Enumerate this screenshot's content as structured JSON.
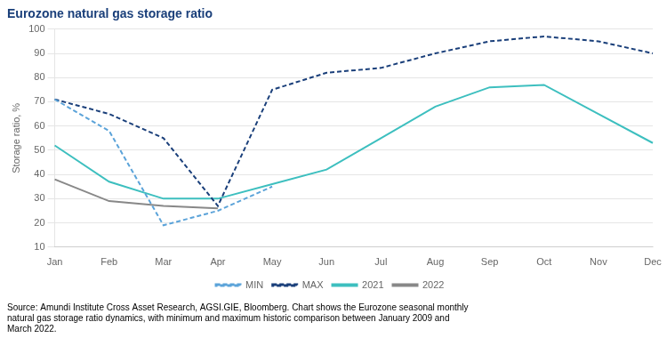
{
  "chart_data": {
    "type": "line",
    "title": "Eurozone natural gas storage ratio",
    "y_label": "Storage ratio, %",
    "categories": [
      "Jan",
      "Feb",
      "Mar",
      "Apr",
      "May",
      "Jun",
      "Jul",
      "Aug",
      "Sep",
      "Oct",
      "Nov",
      "Dec"
    ],
    "series": [
      {
        "name": "MIN",
        "color": "#5ba3d9",
        "line_style": "dashed",
        "values": [
          71,
          58,
          19,
          25,
          35,
          null,
          null,
          null,
          null,
          null,
          null,
          null
        ]
      },
      {
        "name": "MAX",
        "color": "#1a3f7a",
        "line_style": "dashed",
        "values": [
          71,
          65,
          55,
          27,
          75,
          82,
          84,
          90,
          95,
          97,
          95,
          90
        ]
      },
      {
        "name": "2021",
        "color": "#3dbfbf",
        "line_style": "solid",
        "values": [
          52,
          37,
          30,
          30,
          36,
          42,
          55,
          68,
          76,
          77,
          65,
          53
        ]
      },
      {
        "name": "2022",
        "color": "#888888",
        "line_style": "solid",
        "values": [
          38,
          29,
          27,
          26,
          null,
          null,
          null,
          null,
          null,
          null,
          null,
          null
        ]
      }
    ],
    "ylim": [
      10,
      100
    ],
    "yticks": [
      10,
      20,
      30,
      40,
      50,
      60,
      70,
      80,
      90,
      100
    ],
    "grid": true,
    "legend": "bottom",
    "annotations": [
      "Source: Amundi Institute Cross Asset Research, AGSI.GIE, Bloomberg. Chart shows the Eurozone seasonal monthly\nnatural gas storage ratio dynamics, with minimum and maximum historic comparison between January 2009 and\nMarch 2022."
    ]
  }
}
